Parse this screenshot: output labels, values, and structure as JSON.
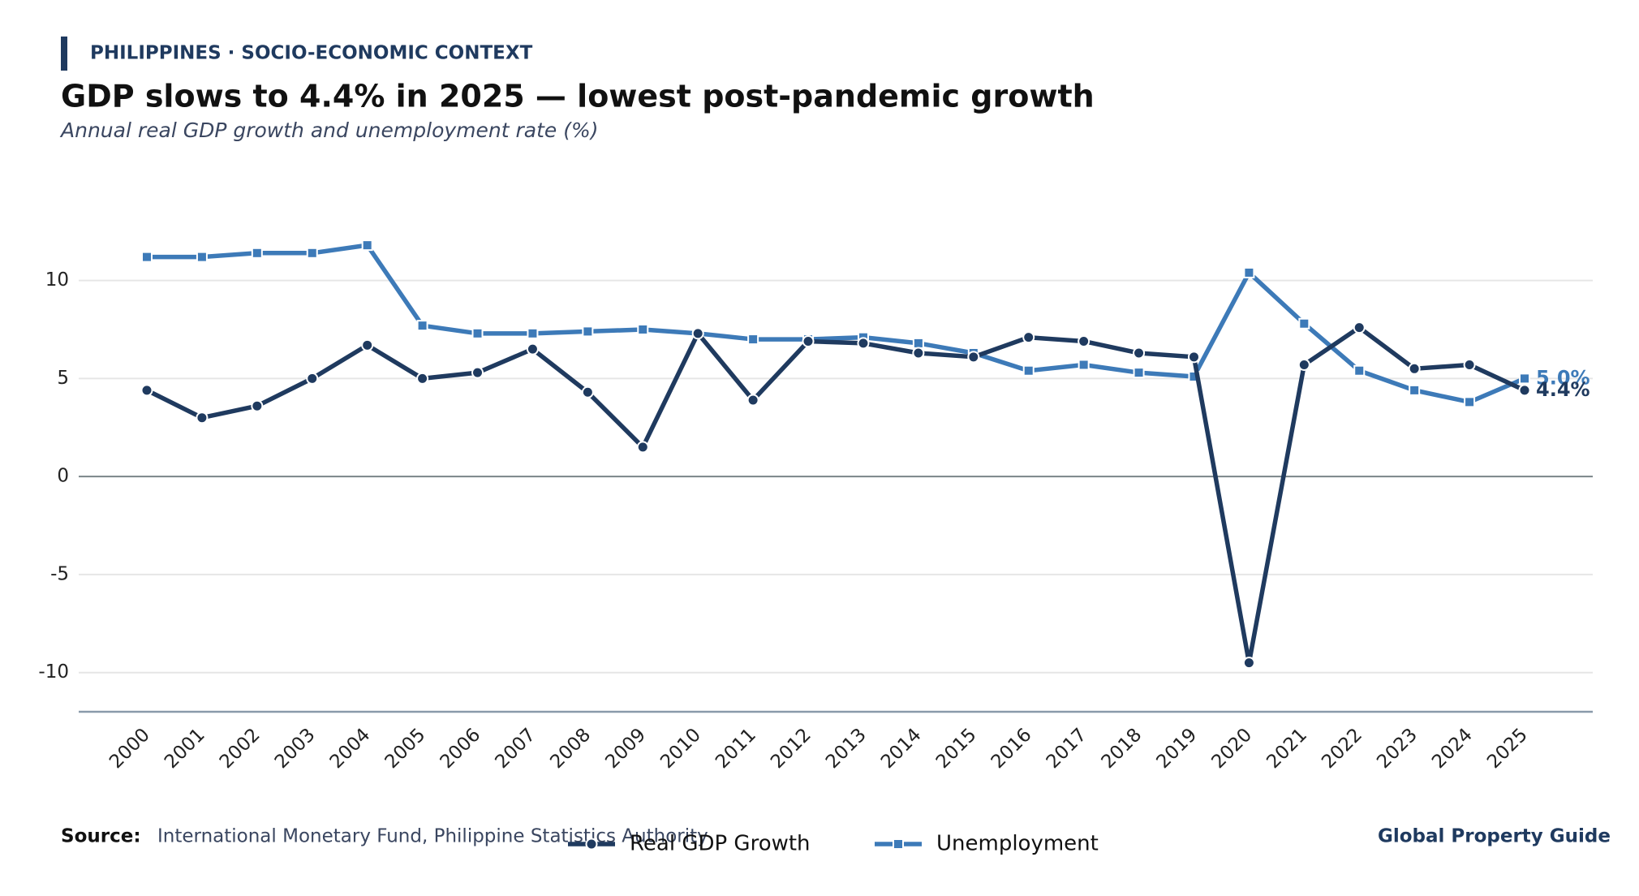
{
  "chart_data": {
    "type": "line",
    "kicker": "PHILIPPINES · SOCIO-ECONOMIC CONTEXT",
    "title": "GDP slows to 4.4% in 2025 — lowest post-pandemic growth",
    "subtitle": "Annual real GDP growth and unemployment rate (%)",
    "source_label": "Source:",
    "source": "International Monetary Fund, Philippine Statistics Authority",
    "brand": "Global Property Guide",
    "categories": [
      "2000",
      "2001",
      "2002",
      "2003",
      "2004",
      "2005",
      "2006",
      "2007",
      "2008",
      "2009",
      "2010",
      "2011",
      "2012",
      "2013",
      "2014",
      "2015",
      "2016",
      "2017",
      "2018",
      "2019",
      "2020",
      "2021",
      "2022",
      "2023",
      "2024",
      "2025"
    ],
    "series": [
      {
        "name": "Real GDP Growth",
        "color": "#1f3a5f",
        "marker": "circle",
        "values": [
          4.4,
          3.0,
          3.6,
          5.0,
          6.7,
          5.0,
          5.3,
          6.5,
          4.3,
          1.5,
          7.3,
          3.9,
          6.9,
          6.8,
          6.3,
          6.1,
          7.1,
          6.9,
          6.3,
          6.1,
          -9.5,
          5.7,
          7.6,
          5.5,
          5.7,
          4.4
        ],
        "value_labels": [
          null,
          null,
          null,
          null,
          null,
          null,
          null,
          null,
          null,
          null,
          null,
          null,
          null,
          null,
          null,
          null,
          null,
          null,
          null,
          null,
          null,
          null,
          null,
          null,
          null,
          "4.4%"
        ]
      },
      {
        "name": "Unemployment",
        "color": "#3d7ab8",
        "marker": "square",
        "values": [
          11.2,
          11.2,
          11.4,
          11.4,
          11.8,
          7.7,
          7.3,
          7.3,
          7.4,
          7.5,
          7.3,
          7.0,
          7.0,
          7.1,
          6.8,
          6.3,
          5.4,
          5.7,
          5.3,
          5.1,
          10.4,
          7.8,
          5.4,
          4.4,
          3.8,
          5.0
        ],
        "value_labels": [
          null,
          null,
          null,
          null,
          null,
          null,
          null,
          null,
          null,
          null,
          null,
          null,
          null,
          null,
          null,
          null,
          null,
          null,
          null,
          null,
          null,
          null,
          null,
          null,
          null,
          "5.0%"
        ]
      }
    ],
    "ylim": [
      -12,
      14
    ],
    "yticks": [
      -10,
      -5,
      0,
      5,
      10
    ],
    "grid": true,
    "legend": "bottom"
  }
}
